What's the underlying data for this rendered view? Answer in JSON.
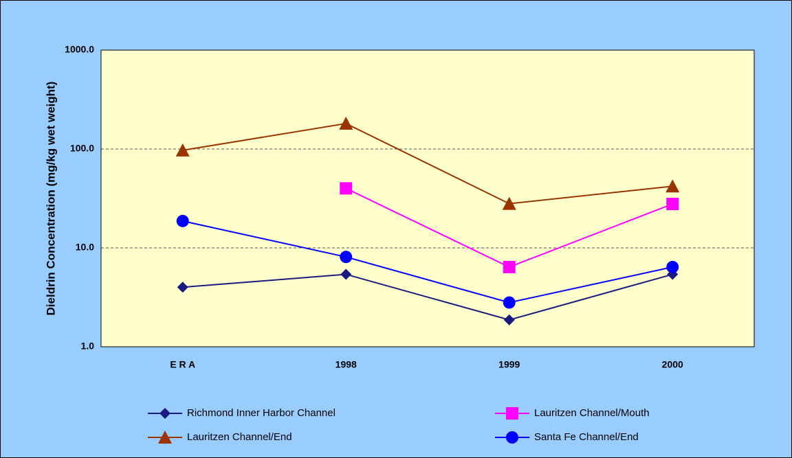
{
  "chart_data": {
    "type": "line",
    "y_label": "Dieldrin Concentration (mg/kg wet weight)",
    "categories": [
      "E R A",
      "1998",
      "1999",
      "2000"
    ],
    "log_scale": true,
    "grid": true,
    "ylim": [
      1,
      1000
    ],
    "yticks": [
      {
        "value": 1,
        "label": "1.0"
      },
      {
        "value": 10,
        "label": "10.0"
      },
      {
        "value": 100,
        "label": "100.0"
      },
      {
        "value": 1000,
        "label": "1000.0"
      }
    ],
    "series": [
      {
        "name": "Richmond Inner Harbor Channel",
        "color": "#1a1a80",
        "marker": "diamond",
        "values": [
          4.0,
          5.4,
          1.87,
          5.4
        ]
      },
      {
        "name": "Lauritzen Channel/Mouth",
        "color": "#ff00ff",
        "marker": "square",
        "values": [
          null,
          40,
          6.4,
          27.8
        ]
      },
      {
        "name": "Lauritzen Channel/End",
        "color": "#993300",
        "marker": "triangle",
        "values": [
          97,
          181,
          28,
          42
        ]
      },
      {
        "name": "Santa Fe Channel/End",
        "color": "#0000ff",
        "marker": "circle",
        "values": [
          18.7,
          8.1,
          2.8,
          6.4
        ]
      }
    ]
  }
}
